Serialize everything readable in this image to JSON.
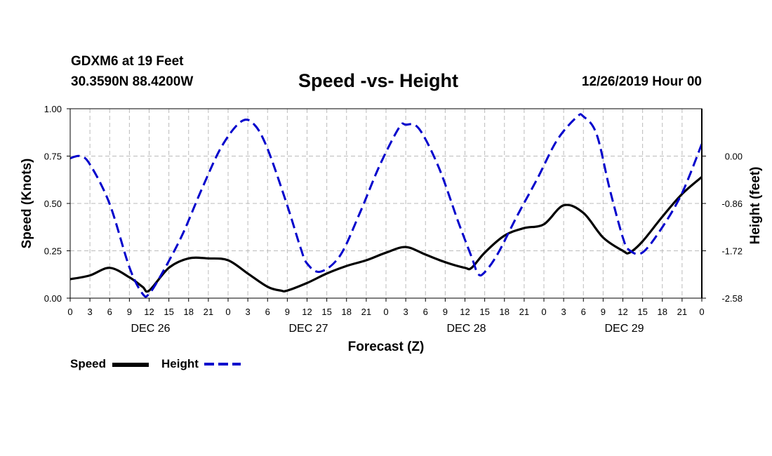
{
  "header": {
    "station": "GDXM6 at 19 Feet",
    "coords": "30.3590N 88.4200W",
    "title": "Speed -vs- Height",
    "date": "12/26/2019 Hour 00"
  },
  "legend": {
    "speed": "Speed",
    "height": "Height"
  },
  "colors": {
    "speed": "#000000",
    "height": "#0000cc",
    "grid": "#bbbbbb"
  },
  "chart_data": {
    "type": "line",
    "title": "Speed -vs- Height",
    "xlabel": "Forecast (Z)",
    "ylabel": "Speed (Knots)",
    "y2label": "Height (feet)",
    "xlim": [
      0,
      96
    ],
    "ylim": [
      0,
      1
    ],
    "y2lim": [
      -2.58,
      0.86
    ],
    "x_ticks": [
      0,
      3,
      6,
      9,
      12,
      15,
      18,
      21,
      24,
      27,
      30,
      33,
      36,
      39,
      42,
      45,
      48,
      51,
      54,
      57,
      60,
      63,
      66,
      69,
      72,
      75,
      78,
      81,
      84,
      87,
      90,
      93,
      96
    ],
    "x_tick_labels": [
      "0",
      "3",
      "6",
      "9",
      "12",
      "15",
      "18",
      "21",
      "0",
      "3",
      "6",
      "9",
      "12",
      "15",
      "18",
      "21",
      "0",
      "3",
      "6",
      "9",
      "12",
      "15",
      "18",
      "21",
      "0",
      "3",
      "6",
      "9",
      "12",
      "15",
      "18",
      "21",
      "0"
    ],
    "y_ticks": [
      0,
      0.25,
      0.5,
      0.75,
      1.0
    ],
    "y_tick_labels": [
      "0.00",
      "0.25",
      "0.50",
      "0.75",
      "1.00"
    ],
    "y2_ticks": [
      0.0,
      -0.86,
      -1.72,
      -2.58
    ],
    "y2_tick_labels": [
      "0.00",
      "-0.86",
      "-1.72",
      "-2.58"
    ],
    "days": [
      {
        "label": "DEC 26",
        "hour": 12
      },
      {
        "label": "DEC 27",
        "hour": 36
      },
      {
        "label": "DEC 28",
        "hour": 60
      },
      {
        "label": "DEC 29",
        "hour": 84
      }
    ],
    "grid": true,
    "series": [
      {
        "name": "Speed",
        "axis": "left",
        "style": "solid",
        "x": [
          0,
          3,
          6,
          9,
          11,
          12,
          15,
          18,
          21,
          24,
          27,
          30,
          32,
          33,
          36,
          39,
          42,
          45,
          48,
          51,
          54,
          57,
          60,
          61,
          63,
          66,
          69,
          72,
          75,
          78,
          81,
          84,
          85,
          87,
          90,
          93,
          96
        ],
        "y": [
          0.1,
          0.12,
          0.16,
          0.11,
          0.06,
          0.04,
          0.16,
          0.21,
          0.21,
          0.2,
          0.13,
          0.06,
          0.04,
          0.04,
          0.08,
          0.13,
          0.17,
          0.2,
          0.24,
          0.27,
          0.23,
          0.19,
          0.16,
          0.16,
          0.24,
          0.33,
          0.37,
          0.39,
          0.49,
          0.45,
          0.32,
          0.25,
          0.24,
          0.3,
          0.43,
          0.55,
          0.64
        ]
      },
      {
        "name": "Height",
        "axis": "right",
        "style": "dashed",
        "x": [
          0,
          1.5,
          3,
          6,
          9,
          11,
          12,
          14,
          17,
          20,
          23,
          26,
          28,
          30,
          33,
          35,
          36,
          38,
          41,
          44,
          47,
          50,
          51,
          53,
          56,
          59,
          61,
          62,
          63,
          65,
          68,
          71,
          74,
          77,
          78,
          80,
          82,
          84,
          85,
          87,
          90,
          93,
          96
        ],
        "y": [
          -0.04,
          0.0,
          -0.15,
          -0.87,
          -2.02,
          -2.5,
          -2.5,
          -2.12,
          -1.44,
          -0.6,
          0.17,
          0.63,
          0.57,
          0.13,
          -0.9,
          -1.66,
          -1.95,
          -2.1,
          -1.81,
          -1.04,
          -0.18,
          0.52,
          0.57,
          0.5,
          -0.2,
          -1.2,
          -1.83,
          -2.14,
          -2.11,
          -1.77,
          -1.07,
          -0.41,
          0.29,
          0.71,
          0.72,
          0.4,
          -0.6,
          -1.48,
          -1.71,
          -1.75,
          -1.29,
          -0.67,
          0.22
        ]
      }
    ]
  }
}
